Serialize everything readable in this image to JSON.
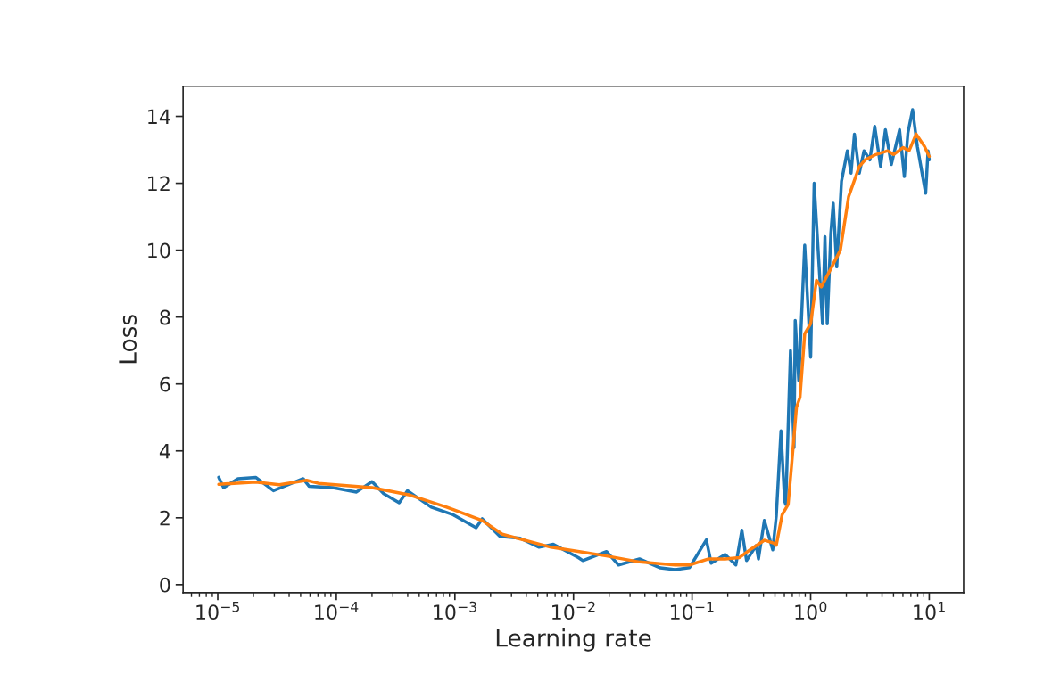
{
  "chart_data": {
    "type": "line",
    "xlabel": "Learning rate",
    "ylabel": "Loss",
    "log": "x",
    "grid": false,
    "legend": false,
    "xlim": [
      5.1e-06,
      19.5
    ],
    "ylim": [
      -0.24,
      14.9
    ],
    "xticks": [
      {
        "value": 1e-05,
        "label": "10$^{−5}$"
      },
      {
        "value": 0.0001,
        "label": "10$^{−4}$"
      },
      {
        "value": 0.001,
        "label": "10$^{−3}$"
      },
      {
        "value": 0.01,
        "label": "10$^{−2}$"
      },
      {
        "value": 0.1,
        "label": "10$^{−1}$"
      },
      {
        "value": 1,
        "label": "10$^{0}$"
      },
      {
        "value": 10,
        "label": "10$^{1}$"
      }
    ],
    "yticks": [
      0,
      2,
      4,
      6,
      8,
      10,
      12,
      14
    ],
    "series": [
      {
        "color": "#1f77b4",
        "x": [
          1.02e-05,
          1.12e-05,
          1.48e-05,
          2.09e-05,
          2.95e-05,
          5.25e-05,
          5.89e-05,
          9.33e-05,
          0.000148,
          0.0002,
          0.000251,
          0.000339,
          0.000398,
          0.000631,
          0.000955,
          0.00151,
          0.0017,
          0.0024,
          0.00355,
          0.00513,
          0.00676,
          0.011,
          0.012,
          0.019,
          0.024,
          0.036,
          0.054,
          0.072,
          0.095,
          0.132,
          0.145,
          0.19,
          0.234,
          0.263,
          0.288,
          0.347,
          0.363,
          0.407,
          0.479,
          0.513,
          0.562,
          0.603,
          0.617,
          0.676,
          0.724,
          0.741,
          0.794,
          0.891,
          1.0,
          1.07,
          1.26,
          1.32,
          1.38,
          1.48,
          1.55,
          1.66,
          1.82,
          2.04,
          2.19,
          2.34,
          2.57,
          2.82,
          3.16,
          3.47,
          3.89,
          4.27,
          4.79,
          5.62,
          6.17,
          6.61,
          7.24,
          7.94,
          9.33,
          9.77,
          10
        ],
        "values": [
          3.21,
          2.9,
          3.17,
          3.21,
          2.81,
          3.17,
          2.94,
          2.9,
          2.77,
          3.08,
          2.72,
          2.45,
          2.81,
          2.32,
          2.1,
          1.7,
          1.97,
          1.44,
          1.39,
          1.12,
          1.21,
          0.81,
          0.72,
          0.99,
          0.59,
          0.77,
          0.5,
          0.45,
          0.51,
          1.34,
          0.64,
          0.9,
          0.59,
          1.63,
          0.72,
          1.17,
          0.77,
          1.92,
          1.04,
          2.05,
          4.6,
          2.5,
          2.4,
          7.0,
          4.1,
          7.9,
          6.1,
          10.15,
          6.8,
          12.0,
          7.8,
          10.4,
          7.8,
          10.5,
          11.4,
          9.5,
          12.06,
          12.97,
          12.3,
          13.47,
          12.3,
          12.97,
          12.7,
          13.7,
          12.5,
          13.6,
          12.56,
          13.6,
          12.2,
          13.5,
          14.2,
          13.1,
          11.7,
          12.97,
          12.7
        ]
      },
      {
        "color": "#ff7f0e",
        "x": [
          1.02e-05,
          2.09e-05,
          3.31e-05,
          5.62e-05,
          7.08e-05,
          0.0002,
          0.000417,
          0.000851,
          0.0017,
          0.00251,
          0.00646,
          0.0112,
          0.019,
          0.036,
          0.072,
          0.095,
          0.138,
          0.19,
          0.251,
          0.316,
          0.407,
          0.49,
          0.513,
          0.575,
          0.646,
          0.692,
          0.759,
          0.813,
          0.891,
          1.0,
          1.12,
          1.23,
          1.41,
          1.78,
          2.09,
          2.57,
          2.88,
          3.55,
          4.47,
          5.01,
          6.03,
          6.76,
          7.76,
          9.12,
          10
        ],
        "values": [
          3.0,
          3.07,
          2.99,
          3.12,
          3.03,
          2.9,
          2.68,
          2.32,
          1.92,
          1.51,
          1.12,
          0.99,
          0.86,
          0.68,
          0.59,
          0.59,
          0.77,
          0.77,
          0.81,
          1.07,
          1.33,
          1.24,
          1.18,
          2.09,
          2.4,
          3.6,
          5.3,
          5.6,
          7.5,
          7.8,
          9.1,
          8.9,
          9.3,
          10.0,
          11.6,
          12.5,
          12.7,
          12.86,
          12.97,
          12.86,
          13.07,
          12.97,
          13.47,
          13.1,
          12.8
        ]
      }
    ]
  }
}
